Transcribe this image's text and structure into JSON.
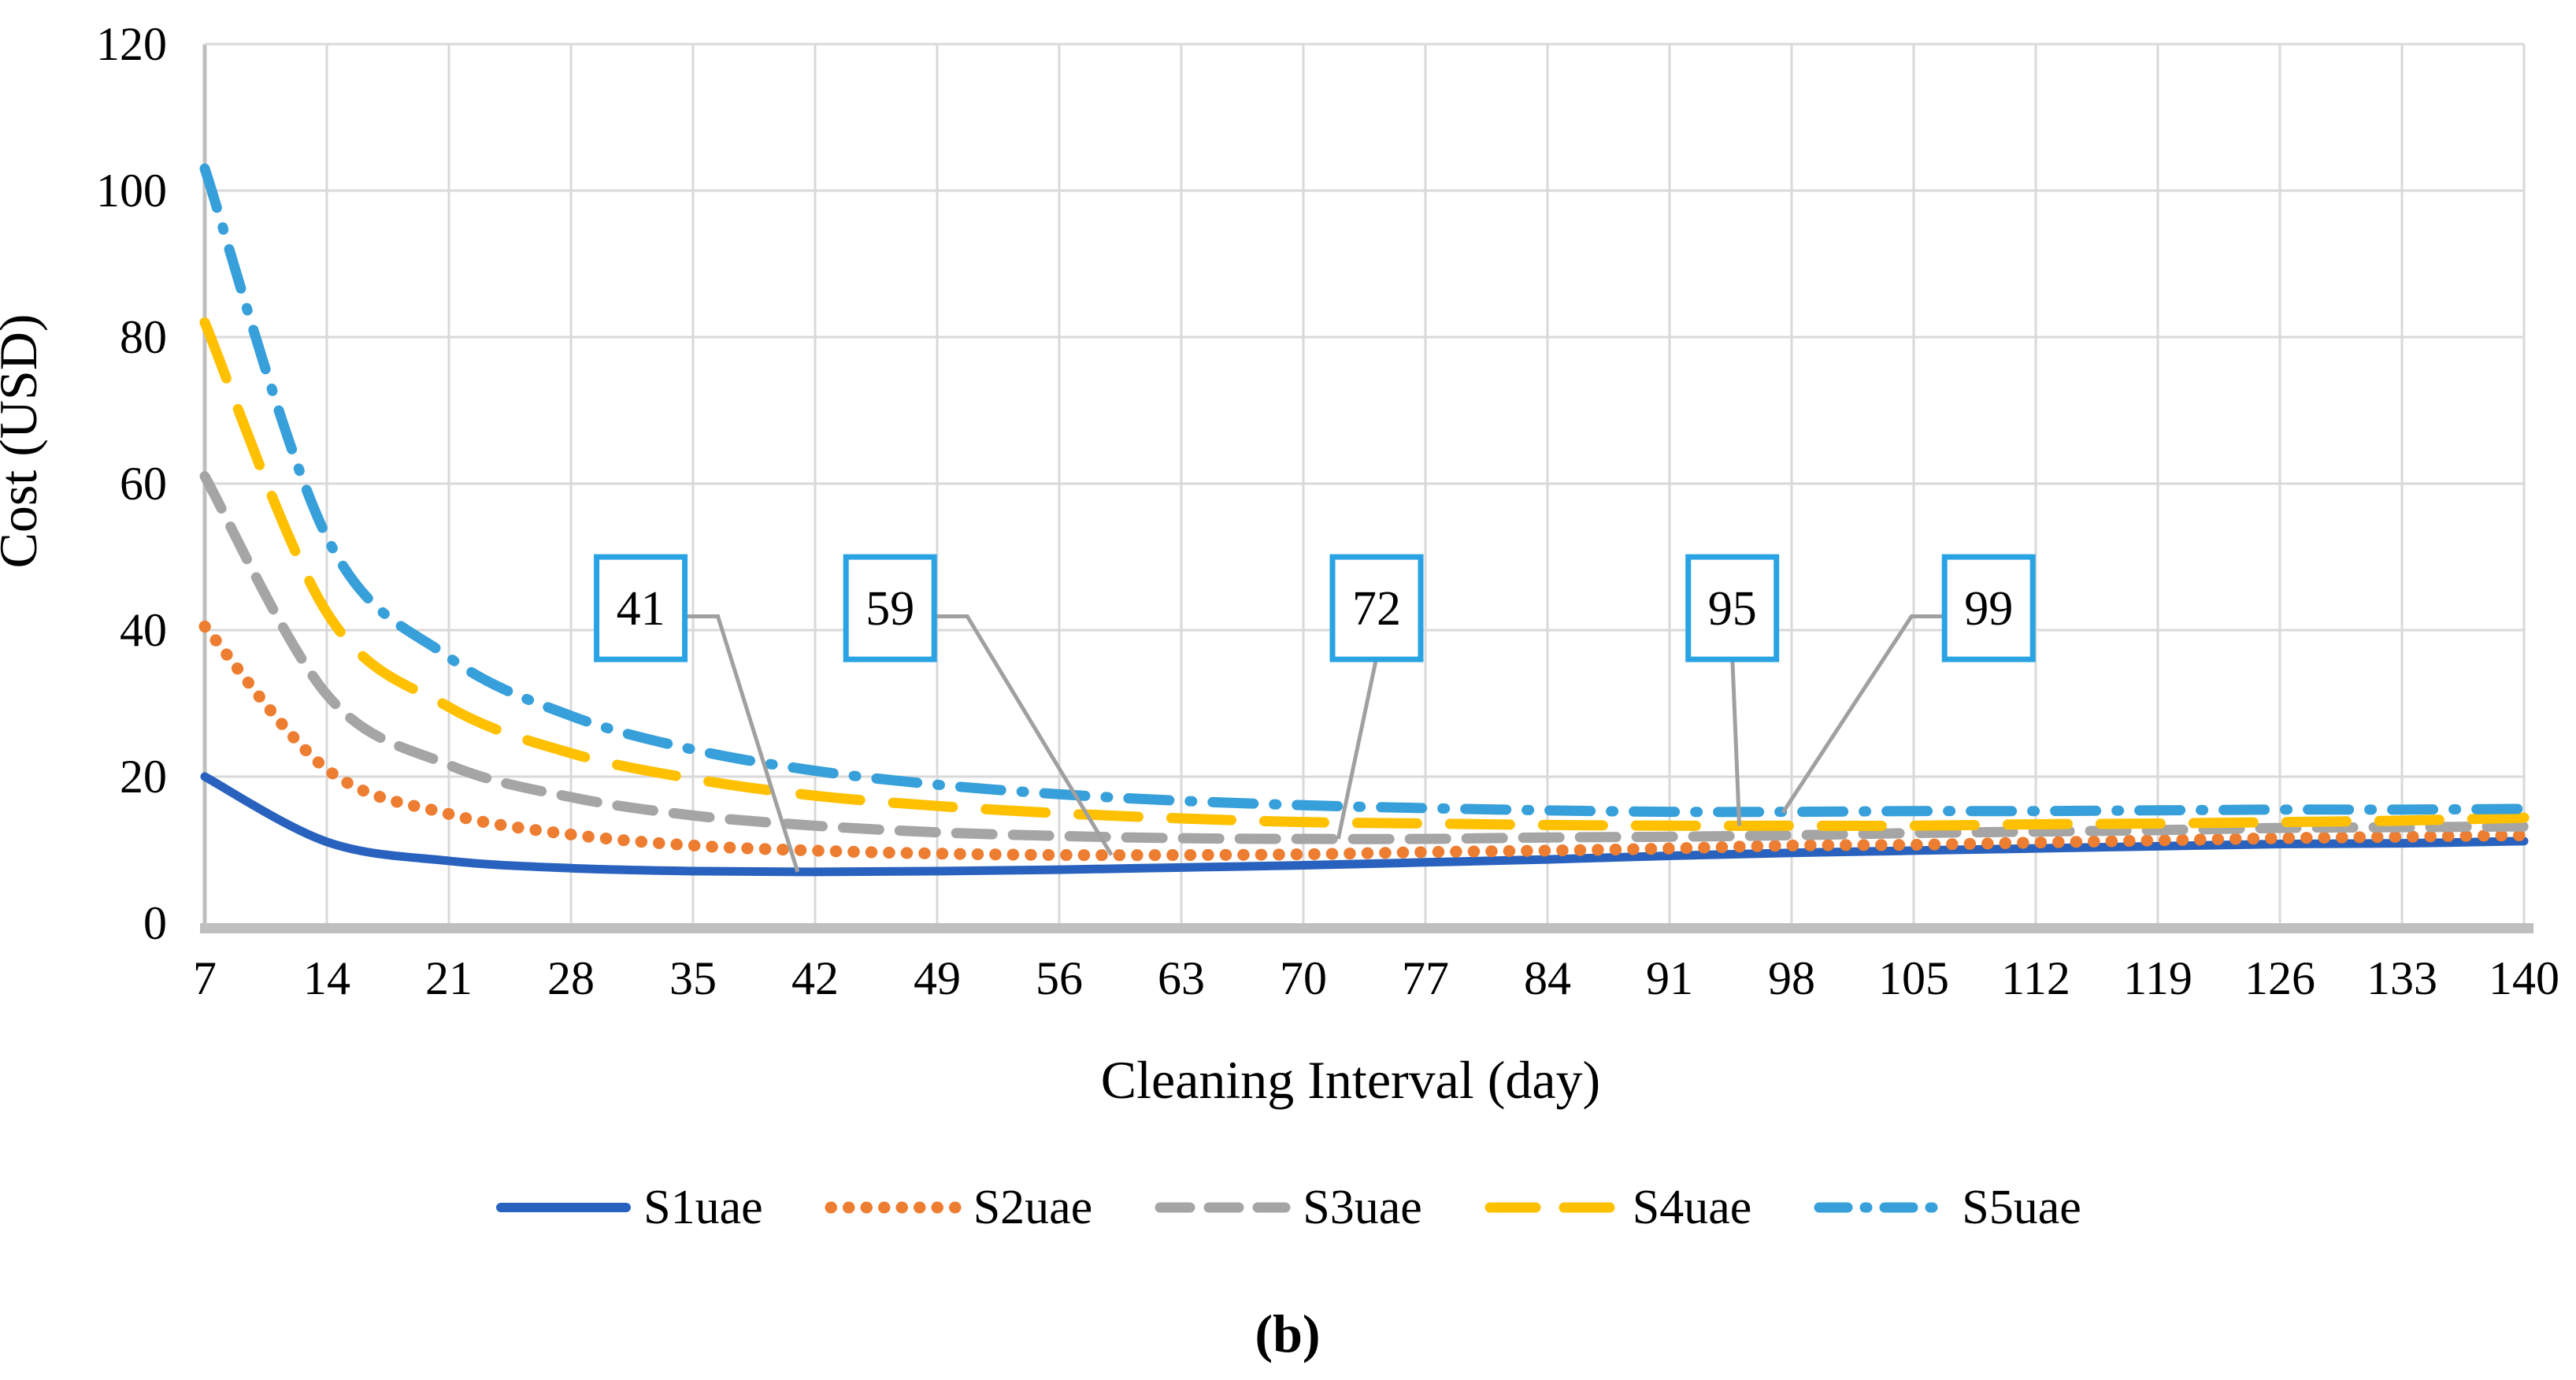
{
  "figure": {
    "caption": "(b)"
  },
  "chart_data": {
    "type": "line",
    "title": "",
    "xlabel": "Cleaning Interval (day)",
    "ylabel": "Cost (USD)",
    "xlim": [
      7,
      140
    ],
    "ylim": [
      0,
      120
    ],
    "grid": true,
    "legend_position": "bottom",
    "grid_color": "#D9D9D9",
    "axis_color": "#BFBFBF",
    "annotation_box_color": "#29A3E3",
    "leader_color": "#A0A0A0",
    "x": [
      7,
      14,
      21,
      28,
      35,
      42,
      49,
      56,
      63,
      70,
      77,
      84,
      91,
      98,
      105,
      112,
      119,
      126,
      133,
      140
    ],
    "y_ticks": [
      0,
      20,
      40,
      60,
      80,
      100,
      120
    ],
    "series": [
      {
        "name": "S1uae",
        "color": "#2962BE",
        "line_style": "solid",
        "values": [
          20.0,
          11.1,
          8.5,
          7.5,
          7.1,
          7.0,
          7.1,
          7.3,
          7.6,
          7.9,
          8.3,
          8.7,
          9.2,
          9.6,
          9.9,
          10.2,
          10.5,
          10.8,
          10.9,
          11.2
        ]
      },
      {
        "name": "S2uae",
        "color": "#ED7D31",
        "line_style": "dotted",
        "values": [
          40.5,
          21.0,
          14.9,
          12.1,
          10.6,
          9.9,
          9.5,
          9.3,
          9.3,
          9.4,
          9.7,
          9.9,
          10.2,
          10.6,
          10.7,
          11.0,
          11.3,
          11.6,
          11.8,
          12.0
        ]
      },
      {
        "name": "S3uae",
        "color": "#A5A5A5",
        "line_style": "dashed",
        "values": [
          61.0,
          31.2,
          21.6,
          17.2,
          14.7,
          13.3,
          12.4,
          11.9,
          11.6,
          11.5,
          11.5,
          11.7,
          11.8,
          12.0,
          12.3,
          12.5,
          12.7,
          13.0,
          13.1,
          13.2
        ]
      },
      {
        "name": "S4uae",
        "color": "#FFC000",
        "line_style": "long-dash",
        "values": [
          82.0,
          42.4,
          29.5,
          23.2,
          19.7,
          17.4,
          16.0,
          15.0,
          14.3,
          13.8,
          13.6,
          13.4,
          13.3,
          13.3,
          13.3,
          13.5,
          13.6,
          13.8,
          14.0,
          14.4
        ]
      },
      {
        "name": "S5uae",
        "color": "#37A0DA",
        "line_style": "dash-dot",
        "values": [
          103.0,
          52.7,
          36.3,
          28.3,
          23.7,
          20.8,
          18.9,
          17.6,
          16.7,
          16.1,
          15.7,
          15.4,
          15.2,
          15.2,
          15.3,
          15.3,
          15.4,
          15.5,
          15.5,
          15.6
        ]
      }
    ],
    "annotations": [
      {
        "label": "41",
        "series": "S1uae",
        "box_day": 32.0,
        "box_value": 43,
        "anchor_day": 41.0,
        "anchor_value": 7.0,
        "leader": "right"
      },
      {
        "label": "59",
        "series": "S2uae",
        "box_day": 46.3,
        "box_value": 43,
        "anchor_day": 59.0,
        "anchor_value": 9.3,
        "leader": "right"
      },
      {
        "label": "72",
        "series": "S3uae",
        "box_day": 74.2,
        "box_value": 43,
        "anchor_day": 72.0,
        "anchor_value": 11.5,
        "leader": "bottom"
      },
      {
        "label": "95",
        "series": "S4uae",
        "box_day": 94.6,
        "box_value": 43,
        "anchor_day": 95.0,
        "anchor_value": 13.3,
        "leader": "bottom"
      },
      {
        "label": "99",
        "series": "S5uae",
        "box_day": 109.3,
        "box_value": 43,
        "anchor_day": 97.5,
        "anchor_value": 15.1,
        "leader": "left"
      }
    ]
  }
}
